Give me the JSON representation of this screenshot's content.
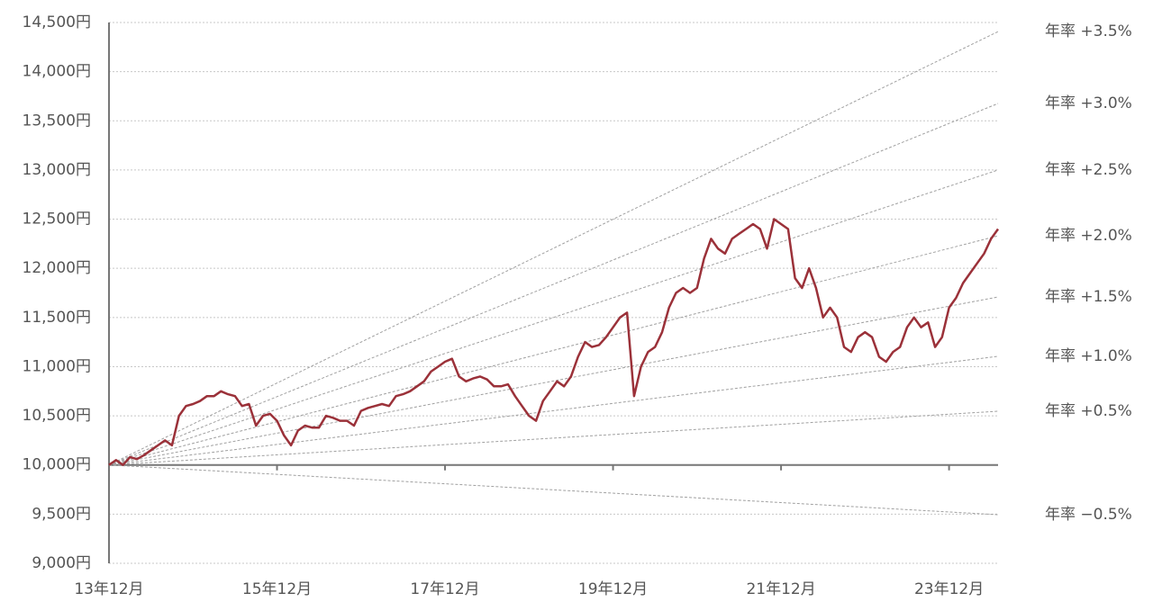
{
  "chart_data": {
    "type": "line",
    "x": [
      0,
      1,
      2,
      3,
      4,
      5,
      6,
      7,
      8,
      9,
      10,
      11,
      12,
      13,
      14,
      15,
      16,
      17,
      18,
      19,
      20,
      21,
      22,
      23,
      24,
      25,
      26,
      27,
      28,
      29,
      30,
      31,
      32,
      33,
      34,
      35,
      36,
      37,
      38,
      39,
      40,
      41,
      42,
      43,
      44,
      45,
      46,
      47,
      48,
      49,
      50,
      51,
      52,
      53,
      54,
      55,
      56,
      57,
      58,
      59,
      60,
      61,
      62,
      63,
      64,
      65,
      66,
      67,
      68,
      69,
      70,
      71,
      72,
      73,
      74,
      75,
      76,
      77,
      78,
      79,
      80,
      81,
      82,
      83,
      84,
      85,
      86,
      87,
      88,
      89,
      90,
      91,
      92,
      93,
      94,
      95,
      96,
      97,
      98,
      99,
      100,
      101,
      102,
      103,
      104,
      105,
      106,
      107,
      108,
      109,
      110,
      111,
      112,
      113,
      114,
      115,
      116,
      117,
      118,
      119,
      120,
      121,
      122,
      123,
      124,
      125,
      126,
      127
    ],
    "series": [
      {
        "color": "#9b3139",
        "values": [
          10000,
          10050,
          10000,
          10080,
          10060,
          10100,
          10150,
          10200,
          10250,
          10200,
          10500,
          10600,
          10620,
          10650,
          10700,
          10700,
          10750,
          10720,
          10700,
          10600,
          10620,
          10400,
          10500,
          10520,
          10450,
          10300,
          10200,
          10350,
          10400,
          10380,
          10380,
          10500,
          10480,
          10450,
          10450,
          10400,
          10550,
          10580,
          10600,
          10620,
          10600,
          10700,
          10720,
          10750,
          10800,
          10850,
          10950,
          11000,
          11050,
          11080,
          10900,
          10850,
          10880,
          10900,
          10870,
          10800,
          10800,
          10820,
          10700,
          10600,
          10500,
          10450,
          10650,
          10750,
          10850,
          10800,
          10900,
          11100,
          11250,
          11200,
          11220,
          11300,
          11400,
          11500,
          11550,
          10700,
          11000,
          11150,
          11200,
          11350,
          11600,
          11750,
          11800,
          11750,
          11800,
          12100,
          12300,
          12200,
          12150,
          12300,
          12350,
          12400,
          12450,
          12400,
          12200,
          12500,
          12450,
          12400,
          11900,
          11800,
          12000,
          11800,
          11500,
          11600,
          11500,
          11200,
          11150,
          11300,
          11350,
          11300,
          11100,
          11050,
          11150,
          11200,
          11400,
          11500,
          11400,
          11450,
          11200,
          11300,
          11600,
          11700,
          11850,
          11950,
          12050,
          12150,
          12300,
          12400
        ]
      }
    ],
    "reference_lines": [
      {
        "name": "年率 +3.5%",
        "x": [
          0,
          127
        ],
        "values": [
          10000,
          14408
        ]
      },
      {
        "name": "年率 +3.0%",
        "x": [
          0,
          127
        ],
        "values": [
          10000,
          13676
        ]
      },
      {
        "name": "年率 +2.5%",
        "x": [
          0,
          127
        ],
        "values": [
          10000,
          13000
        ]
      },
      {
        "name": "年率 +2.0%",
        "x": [
          0,
          127
        ],
        "values": [
          10000,
          12331
        ]
      },
      {
        "name": "年率 +1.5%",
        "x": [
          0,
          127
        ],
        "values": [
          10000,
          11709
        ]
      },
      {
        "name": "年率 +1.0%",
        "x": [
          0,
          127
        ],
        "values": [
          10000,
          11105
        ]
      },
      {
        "name": "年率 +0.5%",
        "x": [
          0,
          127
        ],
        "values": [
          10000,
          10547
        ]
      },
      {
        "name": "年率 −0.5%",
        "x": [
          0,
          127
        ],
        "values": [
          10000,
          9494
        ]
      }
    ],
    "reference_color": "#a0a0a0",
    "xlim": [
      0,
      127
    ],
    "xticks": [
      {
        "value": 0,
        "label": "13年12月"
      },
      {
        "value": 24,
        "label": "15年12月"
      },
      {
        "value": 48,
        "label": "17年12月"
      },
      {
        "value": 72,
        "label": "19年12月"
      },
      {
        "value": 96,
        "label": "21年12月"
      },
      {
        "value": 120,
        "label": "23年12月"
      }
    ],
    "ylim": [
      9000,
      14500
    ],
    "yticks": [
      {
        "value": 9000,
        "label": "9,000円"
      },
      {
        "value": 9500,
        "label": "9,500円"
      },
      {
        "value": 10000,
        "label": "10,000円"
      },
      {
        "value": 10500,
        "label": "10,500円"
      },
      {
        "value": 11000,
        "label": "11,000円"
      },
      {
        "value": 11500,
        "label": "11,500円"
      },
      {
        "value": 12000,
        "label": "12,000円"
      },
      {
        "value": 12500,
        "label": "12,500円"
      },
      {
        "value": 13000,
        "label": "13,000円"
      },
      {
        "value": 13500,
        "label": "13,500円"
      },
      {
        "value": 14000,
        "label": "14,000円"
      },
      {
        "value": 14500,
        "label": "14,500円"
      }
    ],
    "x_axis_at": 10000,
    "grid": true
  }
}
